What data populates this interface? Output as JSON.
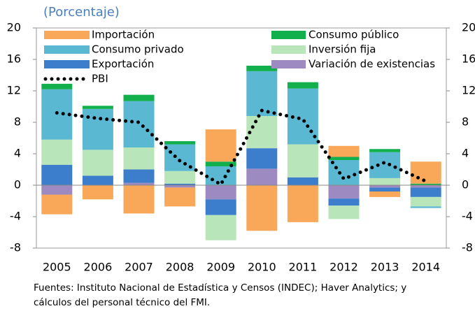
{
  "chart_data": {
    "type": "stacked_bar_line",
    "subtitle": "(Porcentaje)",
    "categories": [
      "2005",
      "2006",
      "2007",
      "2008",
      "2009",
      "2010",
      "2011",
      "2012",
      "2013",
      "2014"
    ],
    "series": [
      {
        "name": "Importación",
        "color": "#f9a85a",
        "values": [
          -2.5,
          -1.8,
          -3.6,
          -2.4,
          4.1,
          -5.8,
          -4.7,
          1.4,
          -0.7,
          2.8
        ]
      },
      {
        "name": "Consumo público",
        "color": "#12b04c",
        "values": [
          0.7,
          0.4,
          0.8,
          0.4,
          0.6,
          0.7,
          0.8,
          0.4,
          0.4,
          0.2
        ]
      },
      {
        "name": "Consumo privado",
        "color": "#5bb8d2",
        "values": [
          6.4,
          5.2,
          5.9,
          3.4,
          2.4,
          5.7,
          7.1,
          3.2,
          3.3,
          -0.2
        ]
      },
      {
        "name": "Inversión fija",
        "color": "#b9e5bb",
        "values": [
          3.2,
          3.3,
          2.8,
          1.6,
          -3.2,
          4.1,
          4.2,
          -1.7,
          0.9,
          -1.2
        ]
      },
      {
        "name": "Exportación",
        "color": "#3c7dcc",
        "values": [
          2.6,
          1.2,
          1.7,
          0.2,
          -2.0,
          2.6,
          1.0,
          -0.9,
          -0.5,
          -1.2
        ]
      },
      {
        "name": "Variación de existencias",
        "color": "#9c8ac0",
        "values": [
          -1.2,
          0,
          0.3,
          -0.3,
          -1.8,
          2.1,
          0,
          -1.7,
          -0.3,
          -0.3
        ]
      },
      {
        "name": "PBI",
        "color": "#000000",
        "kind": "line",
        "values": [
          9.2,
          8.5,
          8.0,
          3.1,
          0.1,
          9.5,
          8.4,
          0.8,
          2.9,
          0.5
        ]
      }
    ],
    "ylim": [
      -8,
      20
    ],
    "yticks": [
      -8,
      -4,
      0,
      4,
      8,
      12,
      16,
      20
    ],
    "y2lim": [
      -8,
      20
    ],
    "y2ticks": [
      -8,
      -4,
      0,
      4,
      8,
      12,
      16,
      20
    ],
    "grid": false,
    "notes": [
      "Fuentes: Instituto Nacional de Estadística y Censos (INDEC); Haver Analytics; y",
      "cálculos del personal técnico del FMI."
    ]
  }
}
